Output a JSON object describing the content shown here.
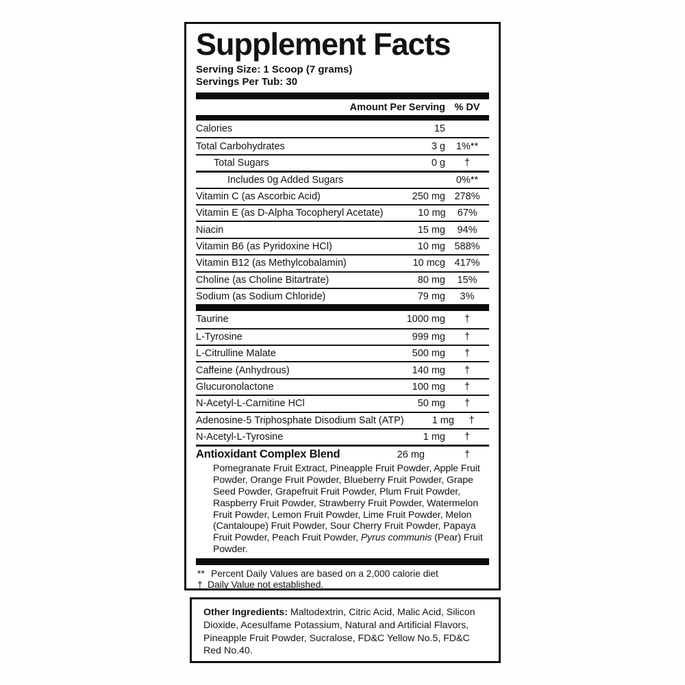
{
  "title": "Supplement Facts",
  "serving": {
    "size": "Serving Size: 1 Scoop (7 grams)",
    "per_tub": "Servings Per Tub: 30"
  },
  "columns": {
    "amount": "Amount Per Serving",
    "dv": "% DV"
  },
  "nutrients": [
    {
      "name": "Calories",
      "amount": "15",
      "dv": ""
    },
    {
      "name": "Total Carbohydrates",
      "amount": "3 g",
      "dv": "1%**"
    },
    {
      "name": "Total Sugars",
      "amount": "0 g",
      "dv": "†"
    },
    {
      "name": "Includes 0g Added Sugars",
      "amount": "",
      "dv": "0%**"
    },
    {
      "name": "Vitamin C (as Ascorbic Acid)",
      "amount": "250 mg",
      "dv": "278%"
    },
    {
      "name": "Vitamin E (as D-Alpha Tocopheryl Acetate)",
      "amount": "10 mg",
      "dv": "67%"
    },
    {
      "name": "Niacin",
      "amount": "15 mg",
      "dv": "94%"
    },
    {
      "name": "Vitamin B6 (as Pyridoxine HCl)",
      "amount": "10 mg",
      "dv": "588%"
    },
    {
      "name": "Vitamin B12 (as Methylcobalamin)",
      "amount": "10 mcg",
      "dv": "417%"
    },
    {
      "name": "Choline (as Choline Bitartrate)",
      "amount": "80 mg",
      "dv": "15%"
    },
    {
      "name": "Sodium (as Sodium Chloride)",
      "amount": "79 mg",
      "dv": "3%"
    }
  ],
  "actives": [
    {
      "name": "Taurine",
      "amount": "1000 mg",
      "dv": "†"
    },
    {
      "name": "L-Tyrosine",
      "amount": "999 mg",
      "dv": "†"
    },
    {
      "name": "L-Citrulline Malate",
      "amount": "500 mg",
      "dv": "†"
    },
    {
      "name": "Caffeine (Anhydrous)",
      "amount": "140 mg",
      "dv": "†"
    },
    {
      "name": "Glucuronolactone",
      "amount": "100 mg",
      "dv": "†"
    },
    {
      "name": "N-Acetyl-L-Carnitine HCl",
      "amount": "50 mg",
      "dv": "†"
    },
    {
      "name": "Adenosine-5 Triphosphate Disodium Salt (ATP)",
      "amount": "1 mg",
      "dv": "†"
    },
    {
      "name": "N-Acetyl-L-Tyrosine",
      "amount": "1 mg",
      "dv": "†"
    }
  ],
  "blend": {
    "name": "Antioxidant Complex Blend",
    "amount": "26 mg",
    "dv": "†",
    "text_before_italic": "Pomegranate Fruit Extract, Pineapple Fruit Powder, Apple Fruit Powder, Orange Fruit Powder, Blueberry Fruit Powder, Grape Seed Powder, Grapefruit Fruit Powder, Plum Fruit Powder, Raspberry Fruit Powder, Strawberry Fruit Powder, Watermelon Fruit Powder, Lemon Fruit Powder, Lime Fruit Powder, Melon (Cantaloupe) Fruit Powder, Sour Cherry Fruit Powder, Papaya Fruit Powder, Peach Fruit Powder, ",
    "italic_species": "Pyrus communis",
    "text_after_italic": " (Pear) Fruit Powder."
  },
  "footnotes": [
    {
      "symbol": "**",
      "text": "Percent Daily Values are based on a 2,000 calorie diet"
    },
    {
      "symbol": "†",
      "text": "Daily Value not established."
    }
  ],
  "other_ingredients": {
    "label": "Other Ingredients:",
    "text": " Maltodextrin, Citric Acid, Malic Acid, Silicon Dioxide, Acesulfame Potassium, Natural and Artificial Flavors, Pineapple Fruit Powder, Sucralose, FD&C Yellow No.5, FD&C Red No.40."
  },
  "colors": {
    "text": "#131313",
    "border": "#101010",
    "background": "#ffffff"
  }
}
